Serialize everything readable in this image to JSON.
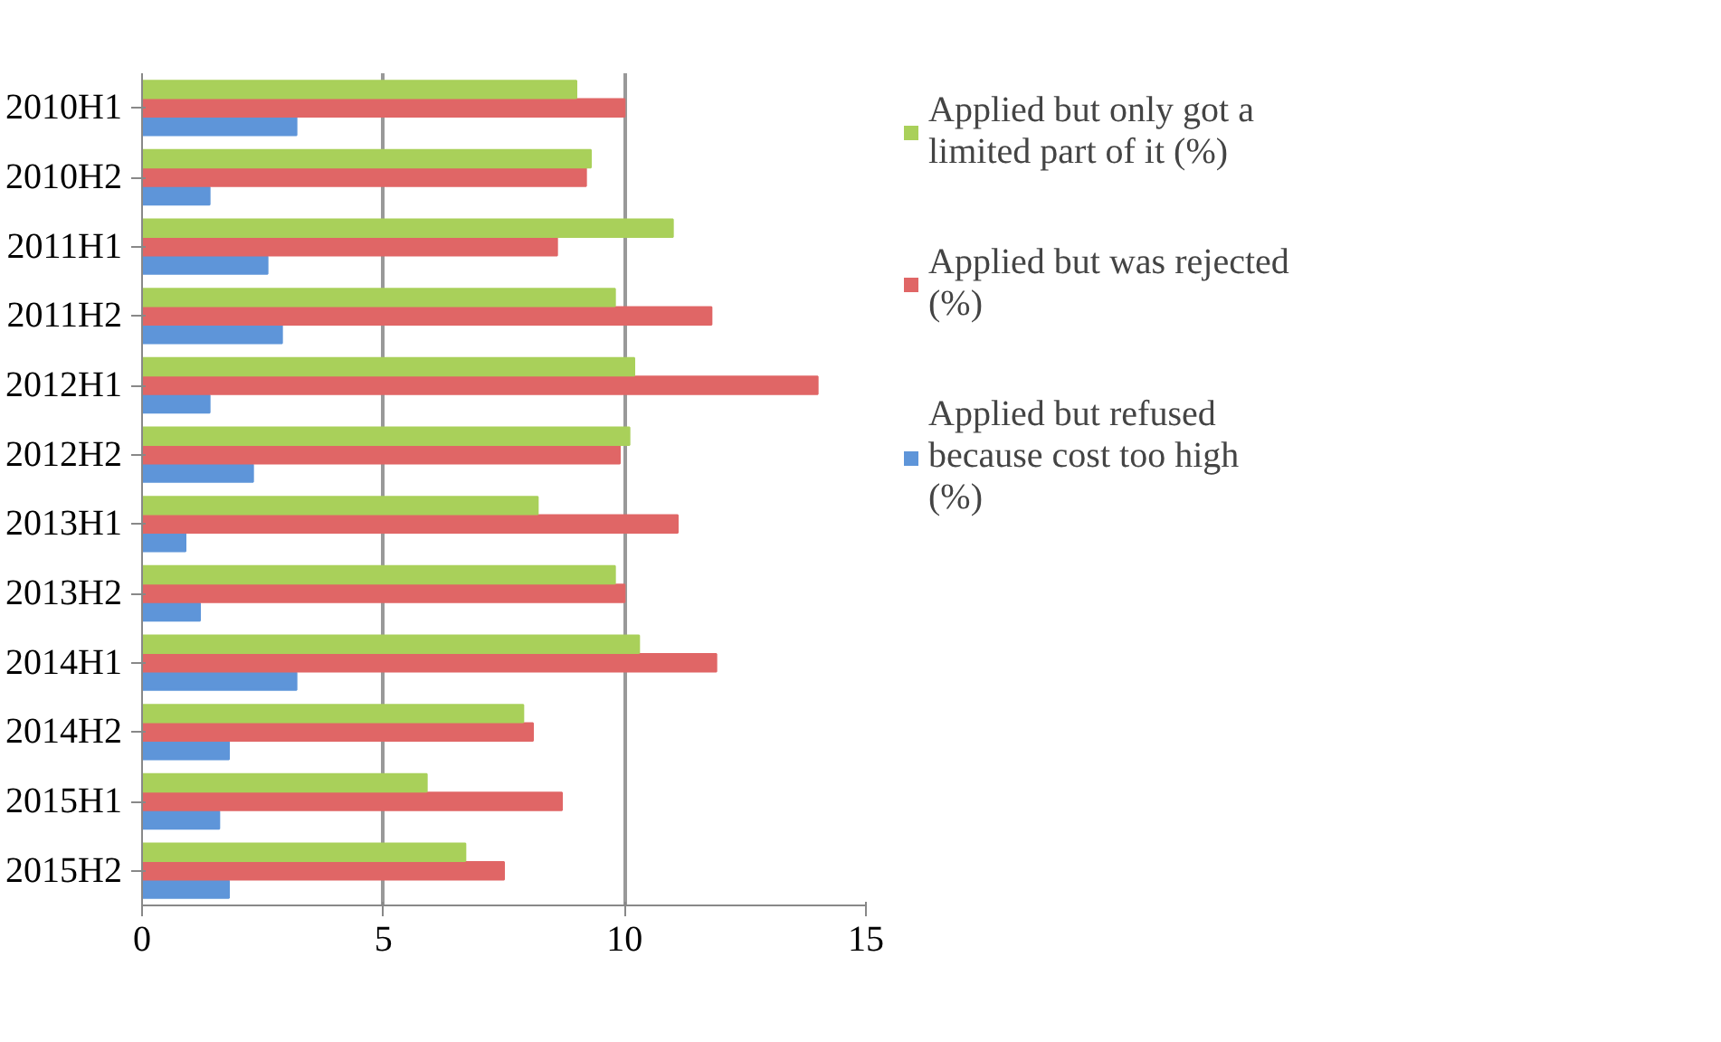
{
  "chart_data": {
    "type": "bar",
    "orientation": "horizontal",
    "categories": [
      "2010H1",
      "2010H2",
      "2011H1",
      "2011H2",
      "2012H1",
      "2012H2",
      "2013H1",
      "2013H2",
      "2014H1",
      "2014H2",
      "2015H1",
      "2015H2"
    ],
    "series": [
      {
        "name": "Applied but refused because cost too high (%)",
        "color": "#5e95d9",
        "values": [
          3.2,
          1.4,
          2.6,
          2.9,
          1.4,
          2.3,
          0.9,
          1.2,
          3.2,
          1.8,
          1.6,
          1.8
        ]
      },
      {
        "name": "Applied but was rejected (%)",
        "color": "#e06666",
        "values": [
          10.0,
          9.2,
          8.6,
          11.8,
          14.0,
          9.9,
          11.1,
          10.0,
          11.9,
          8.1,
          8.7,
          7.5
        ]
      },
      {
        "name": "Applied but only got a limited part of it (%)",
        "color": "#a9d05a",
        "values": [
          9.0,
          9.3,
          11.0,
          9.8,
          10.2,
          10.1,
          8.2,
          9.8,
          10.3,
          7.9,
          5.9,
          6.7
        ]
      }
    ],
    "xlim": [
      0,
      15
    ],
    "xticks": [
      0,
      5,
      10,
      15
    ],
    "grid": "x",
    "legend": "right"
  }
}
